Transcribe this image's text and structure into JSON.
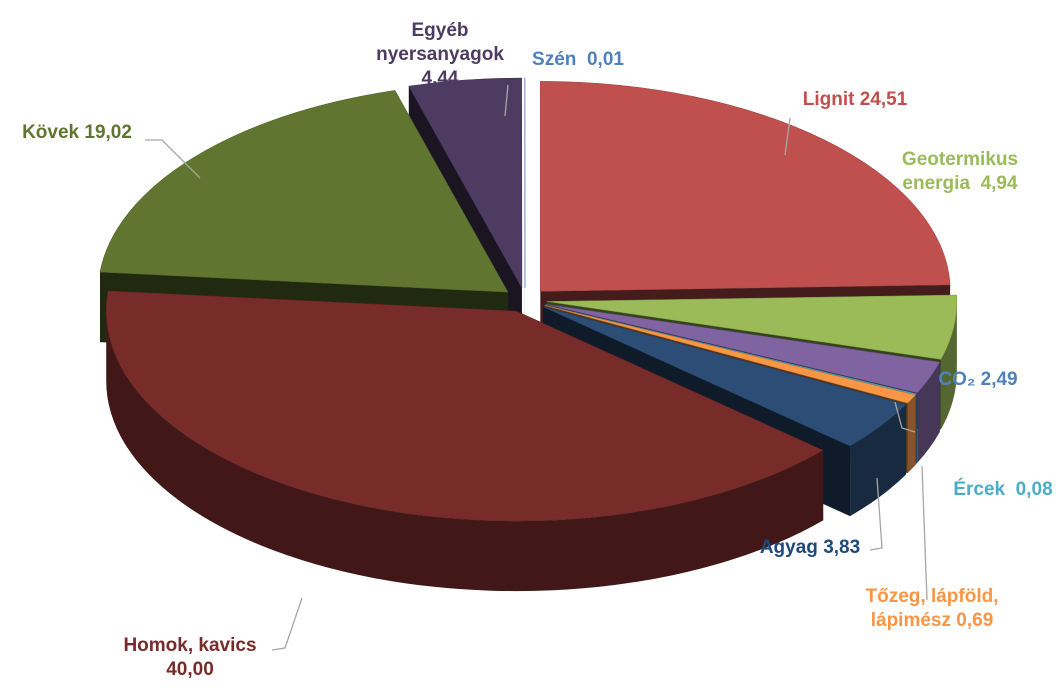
{
  "chart_data": {
    "type": "pie",
    "categories": [
      "Lignit",
      "Geotermikus energia",
      "CO₂",
      "Ércek",
      "Tőzeg, lápföld, lápimész",
      "Agyag",
      "Homok, kavics",
      "Kövek",
      "Egyéb nyersanyagok",
      "Szén"
    ],
    "values": [
      24.51,
      4.94,
      2.49,
      0.08,
      0.69,
      3.83,
      40.0,
      19.02,
      4.44,
      0.01
    ],
    "value_labels": [
      "24,51",
      "4,94",
      "2,49",
      "0,08",
      "0,69",
      "3,83",
      "40,00",
      "19,02",
      "4,44",
      "0,01"
    ],
    "colors": [
      "#c0504d",
      "#9bbb59",
      "#8064a2",
      "#4bacc6",
      "#f79646",
      "#2c4d75",
      "#772c2a",
      "#5f7530",
      "#4d3b62",
      "#4f81bd"
    ]
  }
}
